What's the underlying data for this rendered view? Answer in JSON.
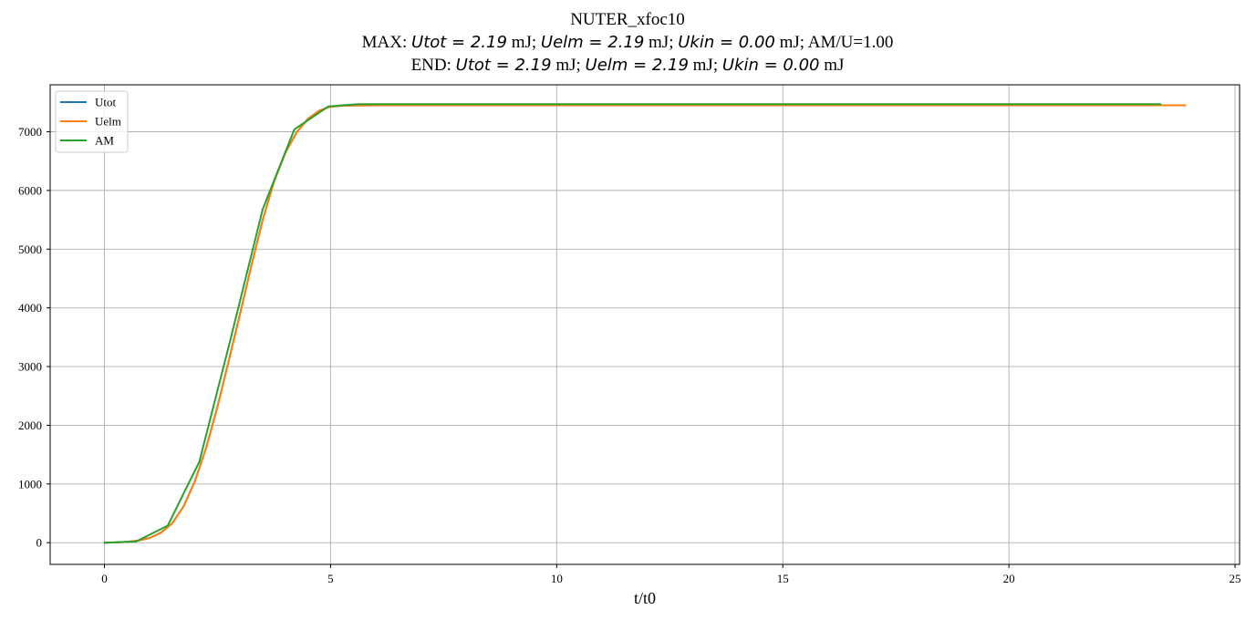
{
  "chart_data": {
    "type": "line",
    "title": "NUTER_xfoc10",
    "subtitle_max": {
      "prefix": "MAX:",
      "parts": [
        {
          "kind": "math",
          "text": "Utot = 2.19"
        },
        {
          "kind": "text",
          "text": " mJ;  "
        },
        {
          "kind": "math",
          "text": "Uelm = 2.19"
        },
        {
          "kind": "text",
          "text": " mJ; "
        },
        {
          "kind": "math",
          "text": "Ukin = 0.00"
        },
        {
          "kind": "text",
          "text": " mJ;  AM/U=1.00"
        }
      ]
    },
    "subtitle_end": {
      "prefix": "END:",
      "parts": [
        {
          "kind": "math",
          "text": "Utot = 2.19"
        },
        {
          "kind": "text",
          "text": " mJ;  "
        },
        {
          "kind": "math",
          "text": "Uelm = 2.19"
        },
        {
          "kind": "text",
          "text": " mJ;  "
        },
        {
          "kind": "math",
          "text": "Ukin = 0.00"
        },
        {
          "kind": "text",
          "text": " mJ"
        }
      ]
    },
    "xlabel": "t/t0",
    "ylabel": "",
    "xlim": [
      -1.2,
      25.1
    ],
    "ylim": [
      -370,
      7800
    ],
    "xticks": [
      0,
      5,
      10,
      15,
      20,
      25
    ],
    "yticks": [
      0,
      1000,
      2000,
      3000,
      4000,
      5000,
      6000,
      7000
    ],
    "grid": true,
    "legend_position": "top-left",
    "series": [
      {
        "name": "Utot",
        "color": "#1f77b4",
        "x": [
          0,
          0.25,
          0.5,
          0.75,
          1.0,
          1.25,
          1.5,
          1.75,
          2.0,
          2.25,
          2.5,
          2.75,
          3.0,
          3.25,
          3.5,
          3.75,
          4.0,
          4.25,
          4.5,
          4.75,
          5.0,
          5.25,
          5.5,
          6,
          8,
          10,
          12,
          14,
          16,
          18,
          20,
          22,
          23.9
        ],
        "y": [
          0,
          5,
          15,
          35,
          80,
          170,
          330,
          620,
          1050,
          1620,
          2320,
          3100,
          3900,
          4720,
          5500,
          6150,
          6640,
          6990,
          7220,
          7360,
          7425,
          7445,
          7448,
          7450,
          7450,
          7450,
          7450,
          7450,
          7450,
          7450,
          7450,
          7450,
          7450
        ]
      },
      {
        "name": "Uelm",
        "color": "#ff7f0e",
        "x": [
          0,
          0.25,
          0.5,
          0.75,
          1.0,
          1.25,
          1.5,
          1.75,
          2.0,
          2.25,
          2.5,
          2.75,
          3.0,
          3.25,
          3.5,
          3.75,
          4.0,
          4.25,
          4.5,
          4.75,
          5.0,
          5.25,
          5.5,
          6,
          8,
          10,
          12,
          14,
          16,
          18,
          20,
          22,
          23.9
        ],
        "y": [
          0,
          5,
          15,
          35,
          80,
          170,
          330,
          620,
          1050,
          1620,
          2320,
          3100,
          3900,
          4720,
          5500,
          6150,
          6640,
          6990,
          7220,
          7360,
          7425,
          7445,
          7448,
          7450,
          7450,
          7450,
          7450,
          7450,
          7450,
          7450,
          7450,
          7450,
          7450
        ]
      },
      {
        "name": "AM",
        "color": "#2ca02c",
        "x": [
          0,
          0.7,
          1.4,
          2.1,
          2.8,
          3.5,
          4.2,
          4.95,
          5.6,
          23.35
        ],
        "y": [
          0,
          20,
          290,
          1380,
          3500,
          5680,
          7040,
          7430,
          7470,
          7470
        ]
      }
    ]
  }
}
